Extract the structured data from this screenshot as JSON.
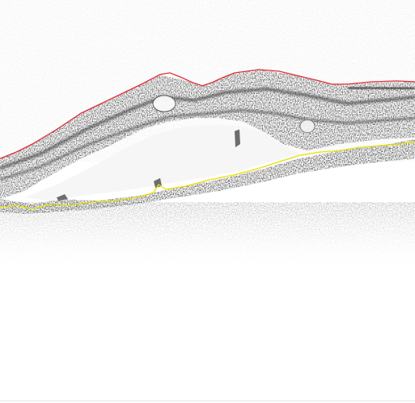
{
  "scan": {
    "background_color": "#ffffff",
    "tissue_color": "#3a3a3a",
    "ilm_boundary_color": "#e0303a",
    "rpe_boundary_color": "#e8e000"
  }
}
